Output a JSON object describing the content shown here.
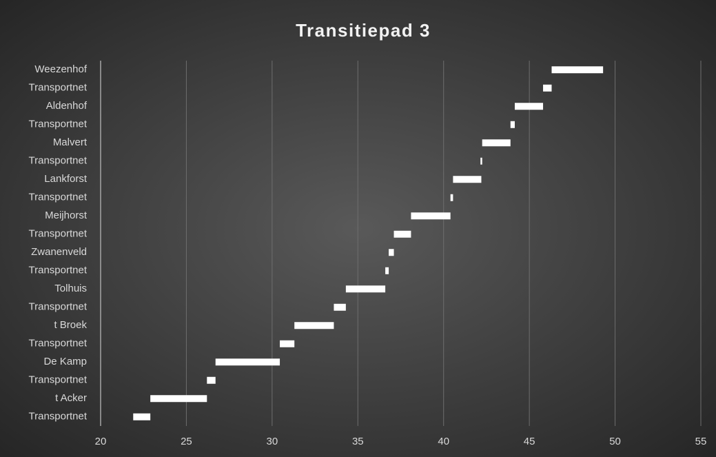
{
  "chart_data": {
    "type": "floating-bar",
    "title": "Transitiepad 3",
    "categories": [
      "Transportnet",
      "t Acker",
      "Transportnet",
      "De Kamp",
      "Transportnet",
      "t Broek",
      "Transportnet",
      "Tolhuis",
      "Transportnet",
      "Zwanenveld",
      "Transportnet",
      "Meijhorst",
      "Transportnet",
      "Lankforst",
      "Transportnet",
      "Malvert",
      "Transportnet",
      "Aldenhof",
      "Transportnet",
      "Weezenhof"
    ],
    "values": [
      [
        21.9,
        22.9
      ],
      [
        22.9,
        26.2
      ],
      [
        26.2,
        26.7
      ],
      [
        26.7,
        30.45
      ],
      [
        30.45,
        31.3
      ],
      [
        31.3,
        33.6
      ],
      [
        33.6,
        34.3
      ],
      [
        34.3,
        36.6
      ],
      [
        36.6,
        36.8
      ],
      [
        36.8,
        37.1
      ],
      [
        37.1,
        38.1
      ],
      [
        38.1,
        40.4
      ],
      [
        40.4,
        40.55
      ],
      [
        40.55,
        42.2
      ],
      [
        42.15,
        42.25
      ],
      [
        42.25,
        43.9
      ],
      [
        43.9,
        44.15
      ],
      [
        44.15,
        45.8
      ],
      [
        45.8,
        46.3
      ],
      [
        46.3,
        49.3
      ]
    ],
    "color": "#ffffff",
    "xlim": [
      20,
      55
    ],
    "xticks": [
      20,
      25,
      30,
      35,
      40,
      45,
      50,
      55
    ],
    "grid": true
  }
}
